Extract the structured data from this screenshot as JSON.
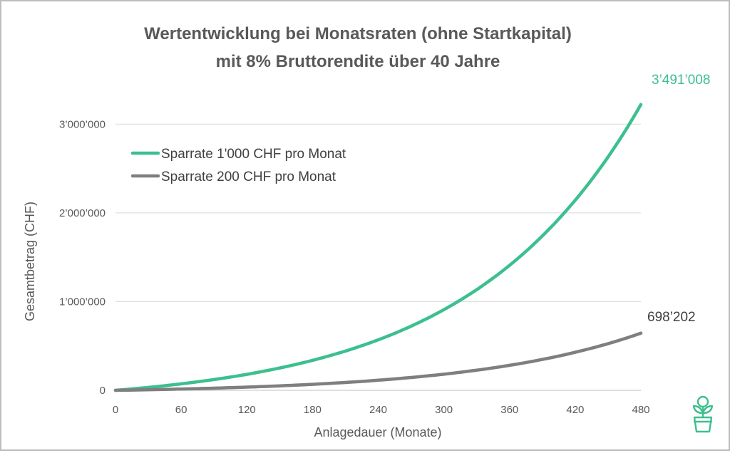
{
  "chart_data": {
    "type": "line",
    "title_line1": "Wertentwicklung bei Monatsraten (ohne Startkapital)",
    "title_line2": "mit 8% Bruttorendite über 40 Jahre",
    "xlabel": "Anlagedauer (Monate)",
    "ylabel": "Gesamtbetrag (CHF)",
    "xlim": [
      0,
      480
    ],
    "ylim": [
      0,
      3500000
    ],
    "x_ticks": [
      0,
      60,
      120,
      180,
      240,
      300,
      360,
      420,
      480
    ],
    "x_tick_labels": [
      "0",
      "60",
      "120",
      "180",
      "240",
      "300",
      "360",
      "420",
      "480"
    ],
    "y_ticks": [
      0,
      1000000,
      2000000,
      3000000
    ],
    "y_tick_labels": [
      "0",
      "1’000’000",
      "2’000’000",
      "3’000’000"
    ],
    "grid": "horizontal",
    "legend_position": "top-left",
    "annual_rate": 0.08,
    "series": [
      {
        "name": "Sparrate 1'000 CHF pro Monat",
        "monthly": 1000,
        "color": "#3dbf8f",
        "end_value": 3491008,
        "end_label": "3’491’008",
        "x": [
          0,
          60,
          120,
          180,
          240,
          300,
          360,
          420,
          480
        ],
        "values": [
          0,
          73500,
          182900,
          345800,
          589300,
          951500,
          1490000,
          2293600,
          3491008
        ]
      },
      {
        "name": "Sparrate 200 CHF pro Monat",
        "monthly": 200,
        "color": "#7f7f7f",
        "end_value": 698202,
        "end_label": "698’202",
        "x": [
          0,
          60,
          120,
          180,
          240,
          300,
          360,
          420,
          480
        ],
        "values": [
          0,
          14700,
          36600,
          69200,
          117900,
          190300,
          298000,
          458700,
          698202
        ]
      }
    ]
  },
  "logo": {
    "name": "plant-pot-logo",
    "color": "#3dbf8f"
  }
}
